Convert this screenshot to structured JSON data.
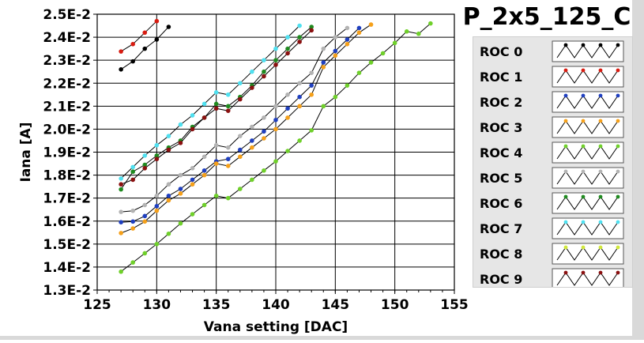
{
  "chart_data": {
    "type": "line",
    "title": "P_2x5_125_C",
    "xlabel": "Vana setting [DAC]",
    "ylabel": "Iana [A]",
    "xlim": [
      125,
      155
    ],
    "ylim": [
      0.013,
      0.025
    ],
    "xticks": [
      "125",
      "130",
      "135",
      "140",
      "145",
      "150",
      "155"
    ],
    "yticks": [
      "1.3E-2",
      "1.4E-2",
      "1.5E-2",
      "1.6E-2",
      "1.7E-2",
      "1.8E-2",
      "1.9E-2",
      "2.0E-2",
      "2.1E-2",
      "2.2E-2",
      "2.3E-2",
      "2.4E-2",
      "2.5E-2"
    ],
    "grid": true,
    "legend_position": "right",
    "series": [
      {
        "name": "ROC 0",
        "color": "#000000",
        "x": [
          127,
          128,
          129,
          130,
          131
        ],
        "y": [
          0.0226,
          0.02295,
          0.0235,
          0.0239,
          0.02445
        ]
      },
      {
        "name": "ROC 1",
        "color": "#d81b10",
        "x": [
          127,
          128,
          129,
          130
        ],
        "y": [
          0.02338,
          0.0237,
          0.0242,
          0.0247
        ]
      },
      {
        "name": "ROC 2",
        "color": "#1f3fbf",
        "x": [
          127,
          128,
          129,
          130,
          131,
          132,
          133,
          134,
          135,
          136,
          137,
          138,
          139,
          140,
          141,
          142,
          143,
          144,
          145,
          146,
          147
        ],
        "y": [
          0.01595,
          0.01598,
          0.01622,
          0.01665,
          0.0171,
          0.0174,
          0.0178,
          0.0182,
          0.0186,
          0.0187,
          0.0191,
          0.0195,
          0.0199,
          0.0204,
          0.0209,
          0.0214,
          0.0219,
          0.0229,
          0.0234,
          0.0239,
          0.0244
        ]
      },
      {
        "name": "ROC 3",
        "color": "#f5a01a",
        "x": [
          127,
          128,
          129,
          130,
          131,
          132,
          133,
          134,
          135,
          136,
          137,
          138,
          139,
          140,
          141,
          142,
          143,
          144,
          145,
          146,
          147,
          148
        ],
        "y": [
          0.01548,
          0.01568,
          0.01598,
          0.01645,
          0.0169,
          0.0172,
          0.0176,
          0.018,
          0.0185,
          0.0184,
          0.0188,
          0.0192,
          0.0196,
          0.02,
          0.0205,
          0.021,
          0.0215,
          0.0227,
          0.0232,
          0.0237,
          0.0242,
          0.02455
        ]
      },
      {
        "name": "ROC 4",
        "color": "#6fd02a",
        "x": [
          127,
          128,
          129,
          130,
          131,
          132,
          133,
          134,
          135,
          136,
          137,
          138,
          139,
          140,
          141,
          142,
          143,
          144,
          145,
          146,
          147,
          148,
          149,
          150,
          151,
          152,
          153
        ],
        "y": [
          0.0138,
          0.0142,
          0.0146,
          0.015,
          0.01545,
          0.0159,
          0.0163,
          0.0167,
          0.0171,
          0.017,
          0.0174,
          0.0178,
          0.0182,
          0.0186,
          0.01905,
          0.0195,
          0.01995,
          0.021,
          0.0214,
          0.0219,
          0.02245,
          0.0229,
          0.0233,
          0.02375,
          0.02425,
          0.02415,
          0.0246
        ]
      },
      {
        "name": "ROC 5",
        "color": "#b3b3b3",
        "x": [
          127,
          128,
          129,
          130,
          131,
          132,
          133,
          134,
          135,
          136,
          137,
          138,
          139,
          140,
          141,
          142,
          143,
          144,
          145,
          146
        ],
        "y": [
          0.0164,
          0.01645,
          0.0167,
          0.0171,
          0.0176,
          0.018,
          0.0183,
          0.0188,
          0.0193,
          0.0192,
          0.0197,
          0.0201,
          0.0205,
          0.021,
          0.0215,
          0.022,
          0.02245,
          0.0235,
          0.024,
          0.0244
        ]
      },
      {
        "name": "ROC 6",
        "color": "#1f8a1f",
        "x": [
          127,
          128,
          129,
          130,
          131,
          132,
          133,
          134,
          135,
          136,
          137,
          138,
          139,
          140,
          141,
          142,
          143
        ],
        "y": [
          0.01738,
          0.01815,
          0.01845,
          0.01885,
          0.0192,
          0.0195,
          0.0201,
          0.0205,
          0.0211,
          0.021,
          0.0214,
          0.0219,
          0.0225,
          0.023,
          0.0235,
          0.024,
          0.02445
        ]
      },
      {
        "name": "ROC 7",
        "color": "#4fe0f0",
        "x": [
          127,
          128,
          129,
          130,
          131,
          132,
          133,
          134,
          135,
          136,
          137,
          138,
          139,
          140,
          141,
          142
        ],
        "y": [
          0.01785,
          0.01835,
          0.01885,
          0.0193,
          0.0197,
          0.0202,
          0.0206,
          0.0211,
          0.0216,
          0.0215,
          0.022,
          0.0225,
          0.023,
          0.0235,
          0.024,
          0.0245
        ]
      },
      {
        "name": "ROC 8",
        "color": "#d0e83a",
        "x": [],
        "y": []
      },
      {
        "name": "ROC 9",
        "color": "#8a1010",
        "x": [
          127,
          128,
          129,
          130,
          131,
          132,
          133,
          134,
          135,
          136,
          137,
          138,
          139,
          140,
          141,
          142,
          143
        ],
        "y": [
          0.0176,
          0.0178,
          0.0183,
          0.0187,
          0.0191,
          0.0194,
          0.02,
          0.0205,
          0.0209,
          0.0208,
          0.0213,
          0.0218,
          0.0223,
          0.0228,
          0.0233,
          0.0238,
          0.0243
        ]
      }
    ]
  }
}
